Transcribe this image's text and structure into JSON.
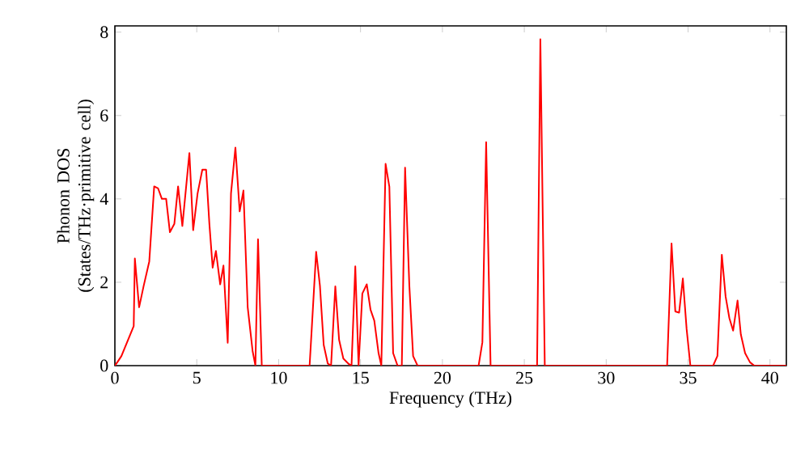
{
  "chart_data": {
    "type": "line",
    "xlabel": "Frequency (THz)",
    "ylabel": "Phonon DOS (States/THz·primitive cell)",
    "xlim": [
      0,
      41
    ],
    "ylim": [
      0,
      8.15
    ],
    "xticks": [
      0,
      5,
      10,
      15,
      20,
      25,
      30,
      35,
      40
    ],
    "yticks": [
      0,
      2,
      4,
      6,
      8
    ],
    "marker": "none",
    "line_style": "solid",
    "series": [
      {
        "color": "#ff0000",
        "x": [
          0,
          0.18,
          0.4,
          1.15,
          1.22,
          1.48,
          1.75,
          2.1,
          2.4,
          2.64,
          2.87,
          3.13,
          3.36,
          3.63,
          3.86,
          4.12,
          4.55,
          4.78,
          5.05,
          5.34,
          5.57,
          5.77,
          5.97,
          6.17,
          6.43,
          6.63,
          6.89,
          7.09,
          7.36,
          7.62,
          7.85,
          8.11,
          8.41,
          8.58,
          8.74,
          8.97,
          11.89,
          12.02,
          12.29,
          12.52,
          12.75,
          13.0,
          13.2,
          13.46,
          13.69,
          13.95,
          14.28,
          14.45,
          14.68,
          14.88,
          15.11,
          15.38,
          15.61,
          15.84,
          16.1,
          16.27,
          16.53,
          16.76,
          16.99,
          17.26,
          17.52,
          17.72,
          17.98,
          18.21,
          18.48,
          22.21,
          22.44,
          22.67,
          22.94,
          25.78,
          25.98,
          26.25,
          33.72,
          33.99,
          34.22,
          34.45,
          34.68,
          34.91,
          35.14,
          36.53,
          36.79,
          37.06,
          37.29,
          37.52,
          37.75,
          38.02,
          38.22,
          38.48,
          38.78,
          39.04,
          41
        ],
        "values": [
          0,
          0.1,
          0.23,
          0.95,
          2.57,
          1.4,
          1.9,
          2.5,
          4.3,
          4.25,
          4.0,
          4.0,
          3.2,
          3.4,
          4.3,
          3.35,
          5.1,
          3.25,
          4.13,
          4.7,
          4.7,
          3.4,
          2.35,
          2.75,
          1.95,
          2.4,
          0.55,
          4.13,
          5.23,
          3.7,
          4.2,
          1.4,
          0.35,
          0,
          3.03,
          0,
          0,
          0.88,
          2.73,
          1.92,
          0.5,
          0.05,
          0,
          1.9,
          0.62,
          0.17,
          0.04,
          0,
          2.38,
          0,
          1.73,
          1.95,
          1.34,
          1.08,
          0.3,
          0,
          4.84,
          4.29,
          0.3,
          0,
          0,
          4.75,
          1.92,
          0.23,
          0,
          0,
          0.56,
          5.36,
          0,
          0,
          7.83,
          0,
          0,
          2.93,
          1.3,
          1.27,
          2.09,
          0.88,
          0,
          0,
          0.23,
          2.66,
          1.66,
          1.14,
          0.84,
          1.56,
          0.75,
          0.3,
          0.08,
          0,
          0
        ]
      }
    ]
  }
}
